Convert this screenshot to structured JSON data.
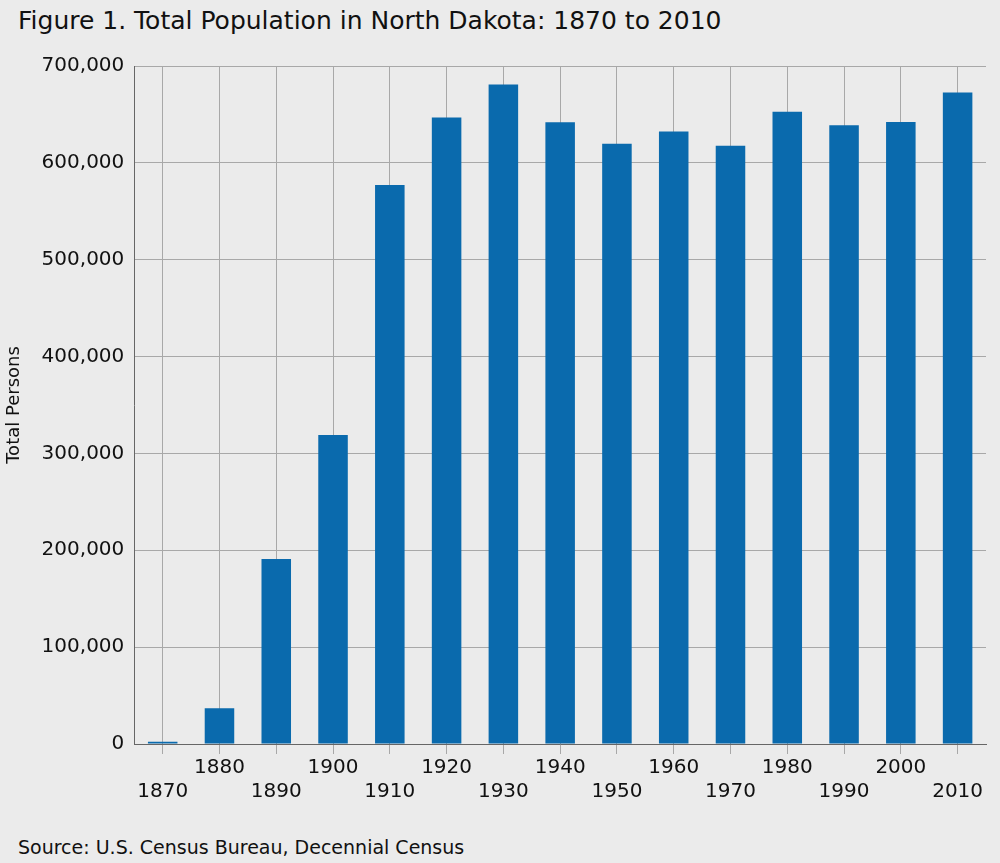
{
  "chart_data": {
    "type": "bar",
    "title": "Figure 1. Total Population in North Dakota: 1870 to 2010",
    "y_label": "Total Persons",
    "source": "Source:  U.S. Census Bureau, Decennial Census",
    "categories": [
      "1870",
      "1880",
      "1890",
      "1900",
      "1910",
      "1920",
      "1930",
      "1940",
      "1950",
      "1960",
      "1970",
      "1980",
      "1990",
      "2000",
      "2010"
    ],
    "values": [
      2405,
      36909,
      190983,
      319146,
      577056,
      646872,
      680845,
      641935,
      619636,
      632446,
      617761,
      652717,
      638800,
      642200,
      672591
    ],
    "color": "#0a6aad",
    "ylim": [
      0,
      700000
    ],
    "yticks": [
      0,
      {
        "value": 100000,
        "label": "100,000"
      },
      {
        "value": 200000,
        "label": "200,000"
      },
      {
        "value": 300000,
        "label": "300,000"
      },
      {
        "value": 400000,
        "label": "400,000"
      },
      {
        "value": 500000,
        "label": "500,000"
      },
      {
        "value": 600000,
        "label": "600,000"
      },
      {
        "value": 700000,
        "label": "700,000"
      }
    ],
    "grid": true
  }
}
